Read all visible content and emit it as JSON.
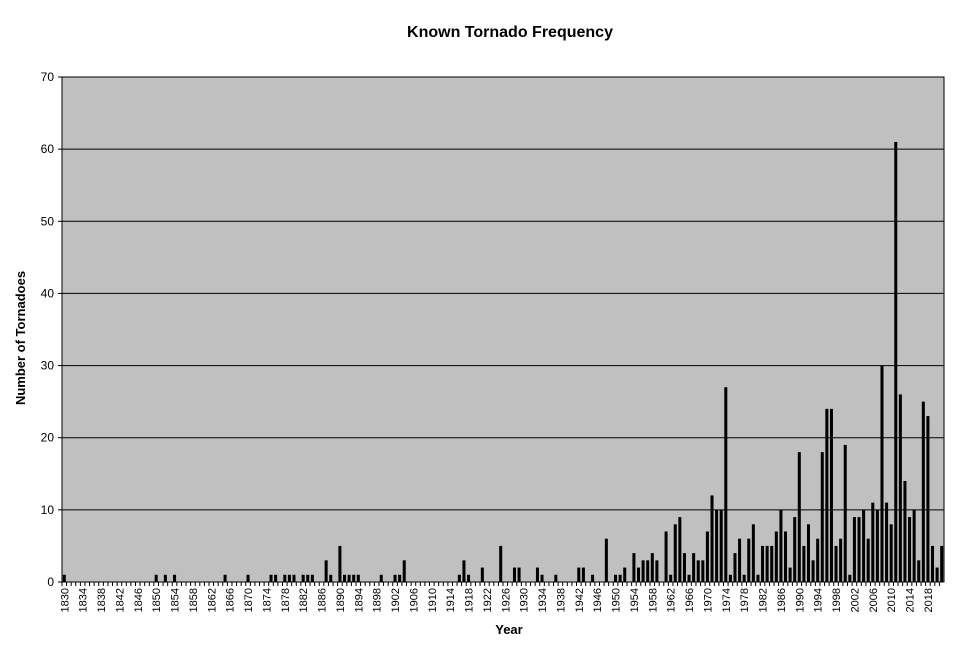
{
  "chart_data": {
    "type": "bar",
    "title": "Known Tornado Frequency",
    "xlabel": "Year",
    "ylabel": "Number of Tornadoes",
    "categories": [
      "1830",
      null,
      null,
      null,
      "1834",
      null,
      null,
      null,
      "1838",
      null,
      null,
      null,
      "1842",
      null,
      null,
      null,
      "1846",
      null,
      null,
      null,
      "1850",
      null,
      null,
      null,
      "1854",
      null,
      null,
      null,
      "1858",
      null,
      null,
      null,
      "1862",
      null,
      null,
      null,
      "1866",
      null,
      null,
      null,
      "1870",
      null,
      null,
      null,
      "1874",
      null,
      null,
      null,
      "1878",
      null,
      null,
      null,
      "1882",
      null,
      null,
      null,
      "1886",
      null,
      null,
      null,
      "1890",
      null,
      null,
      null,
      "1894",
      null,
      null,
      null,
      "1898",
      null,
      null,
      null,
      "1902",
      null,
      null,
      null,
      "1906",
      null,
      null,
      null,
      "1910",
      null,
      null,
      null,
      "1914",
      null,
      null,
      null,
      "1918",
      null,
      null,
      null,
      "1922",
      null,
      null,
      null,
      "1926",
      null,
      null,
      null,
      "1930",
      null,
      null,
      null,
      "1934",
      null,
      null,
      null,
      "1938",
      null,
      null,
      null,
      "1942",
      null,
      null,
      null,
      "1946",
      null,
      null,
      null,
      "1950",
      null,
      null,
      null,
      "1954",
      null,
      null,
      null,
      "1958",
      null,
      null,
      null,
      "1962",
      null,
      null,
      null,
      "1966",
      null,
      null,
      null,
      "1970",
      null,
      null,
      null,
      "1974",
      null,
      null,
      null,
      "1978",
      null,
      null,
      null,
      "1982",
      null,
      null,
      null,
      "1986",
      null,
      null,
      null,
      "1990",
      null,
      null,
      null,
      "1994",
      null,
      null,
      null,
      "1998",
      null,
      null,
      null,
      "2002",
      null,
      null,
      null,
      "2006",
      null,
      null,
      null,
      "2010",
      null,
      null,
      null,
      "2014",
      null,
      null,
      null,
      "2018",
      null,
      null,
      null
    ],
    "values": [
      1,
      0,
      0,
      0,
      0,
      0,
      0,
      0,
      0,
      0,
      0,
      0,
      0,
      0,
      0,
      0,
      0,
      0,
      0,
      0,
      1,
      0,
      1,
      0,
      1,
      0,
      0,
      0,
      0,
      0,
      0,
      0,
      0,
      0,
      0,
      1,
      0,
      0,
      0,
      0,
      1,
      0,
      0,
      0,
      0,
      1,
      1,
      0,
      1,
      1,
      1,
      0,
      1,
      1,
      1,
      0,
      0,
      3,
      1,
      0,
      5,
      1,
      1,
      1,
      1,
      0,
      0,
      0,
      0,
      1,
      0,
      0,
      1,
      1,
      3,
      0,
      0,
      0,
      0,
      0,
      0,
      0,
      0,
      0,
      0,
      0,
      1,
      3,
      1,
      0,
      0,
      2,
      0,
      0,
      0,
      5,
      0,
      0,
      2,
      2,
      0,
      0,
      0,
      2,
      1,
      0,
      0,
      1,
      0,
      0,
      0,
      0,
      2,
      2,
      0,
      1,
      0,
      0,
      6,
      0,
      1,
      1,
      2,
      0,
      4,
      2,
      3,
      3,
      4,
      3,
      0,
      7,
      1,
      8,
      9,
      4,
      1,
      4,
      3,
      3,
      7,
      12,
      10,
      10,
      27,
      1,
      4,
      6,
      1,
      6,
      8,
      1,
      5,
      5,
      5,
      7,
      10,
      7,
      2,
      9,
      18,
      5,
      8,
      3,
      6,
      18,
      24,
      24,
      5,
      6,
      19,
      1,
      9,
      9,
      10,
      6,
      11,
      10,
      30,
      11,
      8,
      61,
      26,
      14,
      9,
      10,
      3,
      25,
      23,
      5,
      2,
      5
    ],
    "color": "#000000",
    "background": "#c0c0c0",
    "ylim": [
      0,
      70
    ],
    "yticks": [
      0,
      10,
      20,
      30,
      40,
      50,
      60,
      70
    ],
    "grid": true
  }
}
